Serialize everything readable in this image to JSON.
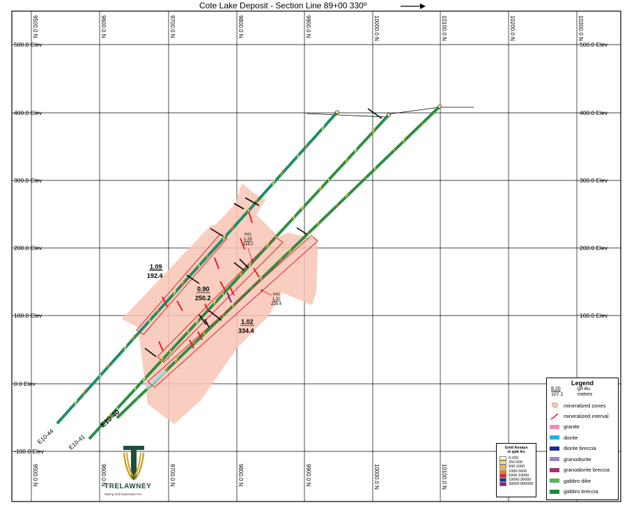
{
  "title": "Cote Lake Deposit - Section Line 89+00  330º",
  "northings": [
    "9500.0 N",
    "9600.0 N",
    "9700.0 N",
    "9800.0 N",
    "9900.0 N",
    "10000.0 N",
    "10100.0 N",
    "10200.0 N",
    "10300.0 N"
  ],
  "elevations_left": [
    "500.0 Elev",
    "400.0 Elev",
    "300.0 Elev",
    "200.0 Elev",
    "100.0 Elev",
    "0.0 Elev",
    "-100.0 Elev"
  ],
  "elevations_right": [
    "500.0 Elev",
    "400.0 Elev",
    "300.0 Elev",
    "200.0 Elev",
    "100.0 Elev"
  ],
  "holes": [
    "E10-44",
    "E10-41",
    "E10-40"
  ],
  "intercepts": [
    {
      "grade": "1.09",
      "length": "192.4"
    },
    {
      "grade": "0.90",
      "length": "250.2"
    },
    {
      "grade": "1.02",
      "length": "334.4"
    }
  ],
  "includes": [
    {
      "word": "incl.",
      "grade": "1.25",
      "length": "118.2"
    },
    {
      "word": "incl.",
      "grade": "1.32",
      "length": "229.4"
    }
  ],
  "legend": {
    "title": "Legend",
    "sample_grade": "8.20",
    "sample_length": "107.1",
    "grade_unit": "g/t Au",
    "length_unit": "metres",
    "items": [
      {
        "label": "mineralized zones",
        "color": "#f8c4b4"
      },
      {
        "label": "mineralized interval",
        "color": "#e0202a"
      },
      {
        "label": "granite",
        "color": "#f08cb4"
      },
      {
        "label": "diorite",
        "color": "#20b4e4"
      },
      {
        "label": "diorite breccia",
        "color": "#1c2c8c"
      },
      {
        "label": "granodiorite",
        "color": "#9c84bc"
      },
      {
        "label": "granodiorite breccia",
        "color": "#a4307c"
      },
      {
        "label": "gabbro dike",
        "color": "#54b45c"
      },
      {
        "label": "gabbro breccia",
        "color": "#1c8c3c"
      }
    ]
  },
  "assay_legend": {
    "title_line1": "Gold Assays",
    "title_line2": "in ppb Au",
    "items": [
      {
        "label": "0-250",
        "color": "#fff8b0"
      },
      {
        "label": "250-500",
        "color": "#ffe070"
      },
      {
        "label": "500-1000",
        "color": "#f8c030"
      },
      {
        "label": "1000-5000",
        "color": "#f08020"
      },
      {
        "label": "5000-10000",
        "color": "#e02020"
      },
      {
        "label": "10000-30000",
        "color": "#2030a0"
      },
      {
        "label": "30000-800000",
        "color": "#802080"
      }
    ]
  },
  "logo": {
    "name": "TRELAWNEY",
    "subtitle": "Mining and Exploration Inc.",
    "color_primary": "#1f4f3a",
    "color_accent": "#c9a227"
  }
}
